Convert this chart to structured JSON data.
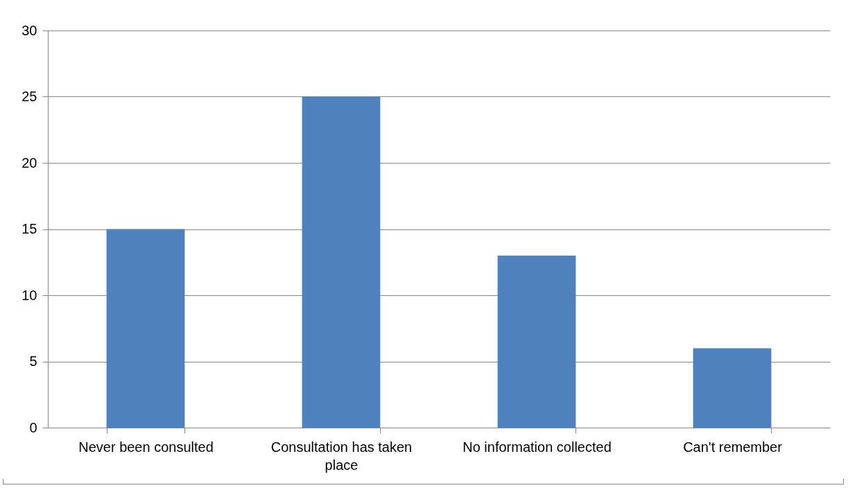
{
  "chart_data": {
    "type": "bar",
    "categories": [
      "Never been consulted",
      "Consultation has taken place",
      "No information collected",
      "Can't remember"
    ],
    "values": [
      15,
      25,
      13,
      6
    ],
    "color": "#4f81bd",
    "ylim": [
      0,
      30
    ],
    "yticks": [
      0,
      5,
      10,
      15,
      20,
      25,
      30
    ],
    "grid": "y"
  }
}
